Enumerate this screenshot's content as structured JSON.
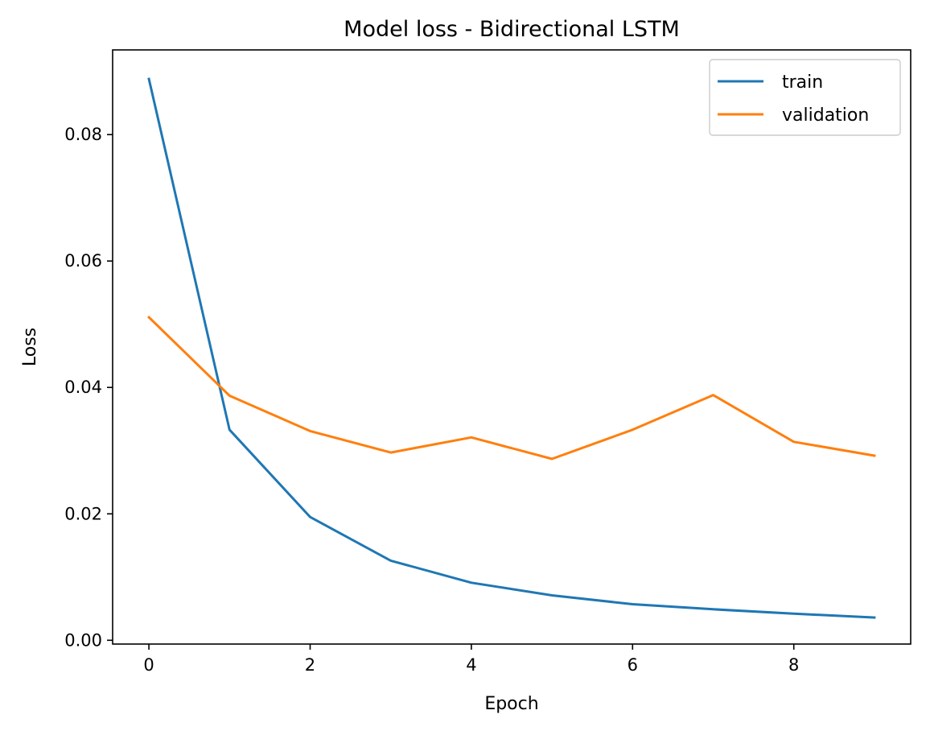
{
  "chart_data": {
    "type": "line",
    "title": "Model loss - Bidirectional LSTM",
    "xlabel": "Epoch",
    "ylabel": "Loss",
    "x": [
      0,
      1,
      2,
      3,
      4,
      5,
      6,
      7,
      8,
      9
    ],
    "xlim": [
      -0.45,
      9.45
    ],
    "ylim": [
      -0.0006,
      0.0934
    ],
    "xticks": [
      0,
      2,
      4,
      6,
      8
    ],
    "yticks": [
      0.0,
      0.02,
      0.04,
      0.06,
      0.08
    ],
    "xtick_labels": [
      "0",
      "2",
      "4",
      "6",
      "8"
    ],
    "ytick_labels": [
      "0.00",
      "0.02",
      "0.04",
      "0.06",
      "0.08"
    ],
    "grid": false,
    "legend_position": "top-right",
    "series": [
      {
        "name": "train",
        "color": "#1f77b4",
        "values": [
          0.0888,
          0.0333,
          0.0195,
          0.0126,
          0.0091,
          0.0071,
          0.0057,
          0.0049,
          0.0042,
          0.0036
        ]
      },
      {
        "name": "validation",
        "color": "#ff7f0e",
        "values": [
          0.0511,
          0.0387,
          0.0331,
          0.0297,
          0.0321,
          0.0287,
          0.0333,
          0.0388,
          0.0314,
          0.0292
        ]
      }
    ]
  }
}
